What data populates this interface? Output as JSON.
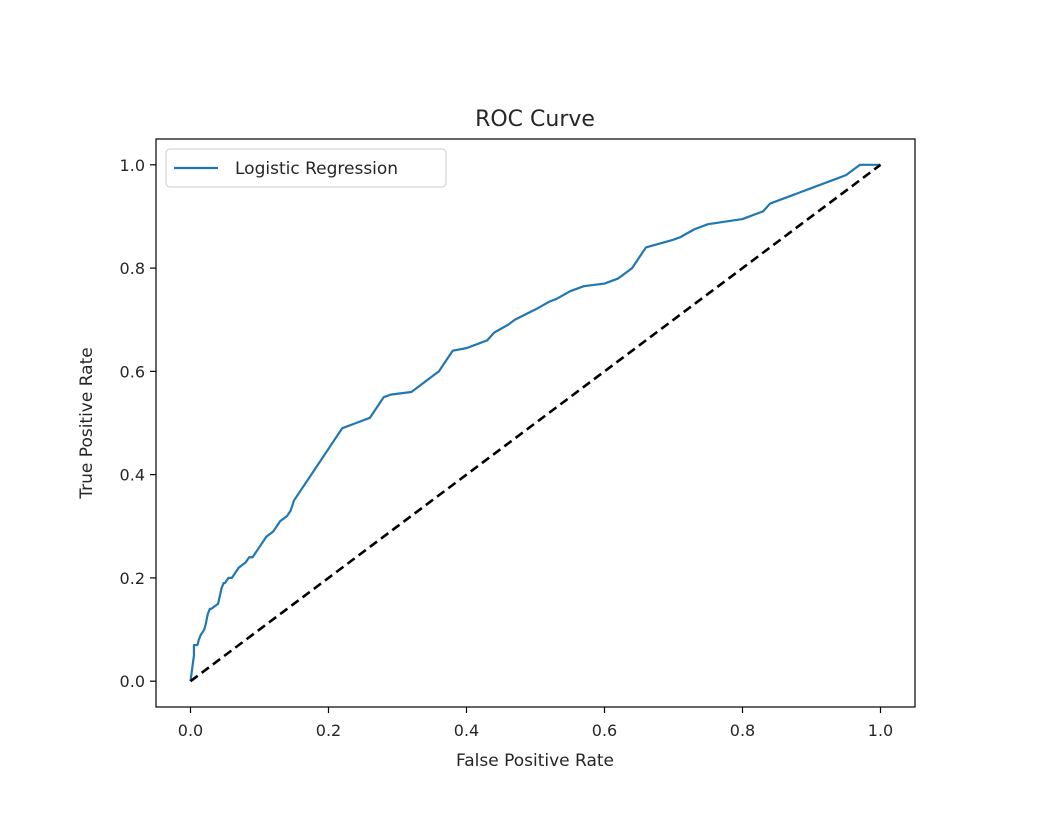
{
  "chart_data": {
    "type": "line",
    "title": "ROC Curve",
    "xlabel": "False Positive Rate",
    "ylabel": "True Positive Rate",
    "xlim": [
      -0.05,
      1.05
    ],
    "ylim": [
      -0.05,
      1.05
    ],
    "xticks": [
      0.0,
      0.2,
      0.4,
      0.6,
      0.8,
      1.0
    ],
    "xtick_labels": [
      "0.0",
      "0.2",
      "0.4",
      "0.6",
      "0.8",
      "1.0"
    ],
    "yticks": [
      0.0,
      0.2,
      0.4,
      0.6,
      0.8,
      1.0
    ],
    "ytick_labels": [
      "0.0",
      "0.2",
      "0.4",
      "0.6",
      "0.8",
      "1.0"
    ],
    "grid": false,
    "legend_position": "upper left",
    "series": [
      {
        "name": "Logistic Regression",
        "color": "#1f77b4",
        "style": "solid",
        "x": [
          0.0,
          0.002,
          0.005,
          0.005,
          0.01,
          0.012,
          0.015,
          0.02,
          0.022,
          0.025,
          0.028,
          0.03,
          0.04,
          0.045,
          0.048,
          0.05,
          0.055,
          0.06,
          0.065,
          0.07,
          0.08,
          0.085,
          0.09,
          0.1,
          0.11,
          0.12,
          0.13,
          0.14,
          0.145,
          0.15,
          0.18,
          0.2,
          0.22,
          0.24,
          0.26,
          0.27,
          0.28,
          0.29,
          0.32,
          0.33,
          0.34,
          0.35,
          0.36,
          0.37,
          0.38,
          0.4,
          0.42,
          0.43,
          0.44,
          0.46,
          0.47,
          0.5,
          0.52,
          0.53,
          0.55,
          0.57,
          0.6,
          0.62,
          0.63,
          0.64,
          0.65,
          0.66,
          0.7,
          0.71,
          0.73,
          0.75,
          0.8,
          0.81,
          0.82,
          0.83,
          0.84,
          0.87,
          0.88,
          0.89,
          0.9,
          0.92,
          0.93,
          0.95,
          0.97,
          1.0
        ],
        "y": [
          0.0,
          0.02,
          0.05,
          0.07,
          0.07,
          0.08,
          0.09,
          0.1,
          0.11,
          0.13,
          0.14,
          0.14,
          0.15,
          0.18,
          0.19,
          0.19,
          0.2,
          0.2,
          0.21,
          0.22,
          0.23,
          0.24,
          0.24,
          0.26,
          0.28,
          0.29,
          0.31,
          0.32,
          0.33,
          0.35,
          0.41,
          0.45,
          0.49,
          0.5,
          0.51,
          0.53,
          0.55,
          0.555,
          0.56,
          0.57,
          0.58,
          0.59,
          0.6,
          0.62,
          0.64,
          0.645,
          0.655,
          0.66,
          0.675,
          0.69,
          0.7,
          0.72,
          0.735,
          0.74,
          0.755,
          0.765,
          0.77,
          0.78,
          0.79,
          0.8,
          0.82,
          0.84,
          0.855,
          0.86,
          0.875,
          0.885,
          0.895,
          0.9,
          0.905,
          0.91,
          0.925,
          0.94,
          0.945,
          0.95,
          0.955,
          0.965,
          0.97,
          0.98,
          1.0,
          1.0
        ]
      },
      {
        "name": "",
        "color": "#000000",
        "style": "dashed",
        "x": [
          0.0,
          1.0
        ],
        "y": [
          0.0,
          1.0
        ]
      }
    ]
  }
}
